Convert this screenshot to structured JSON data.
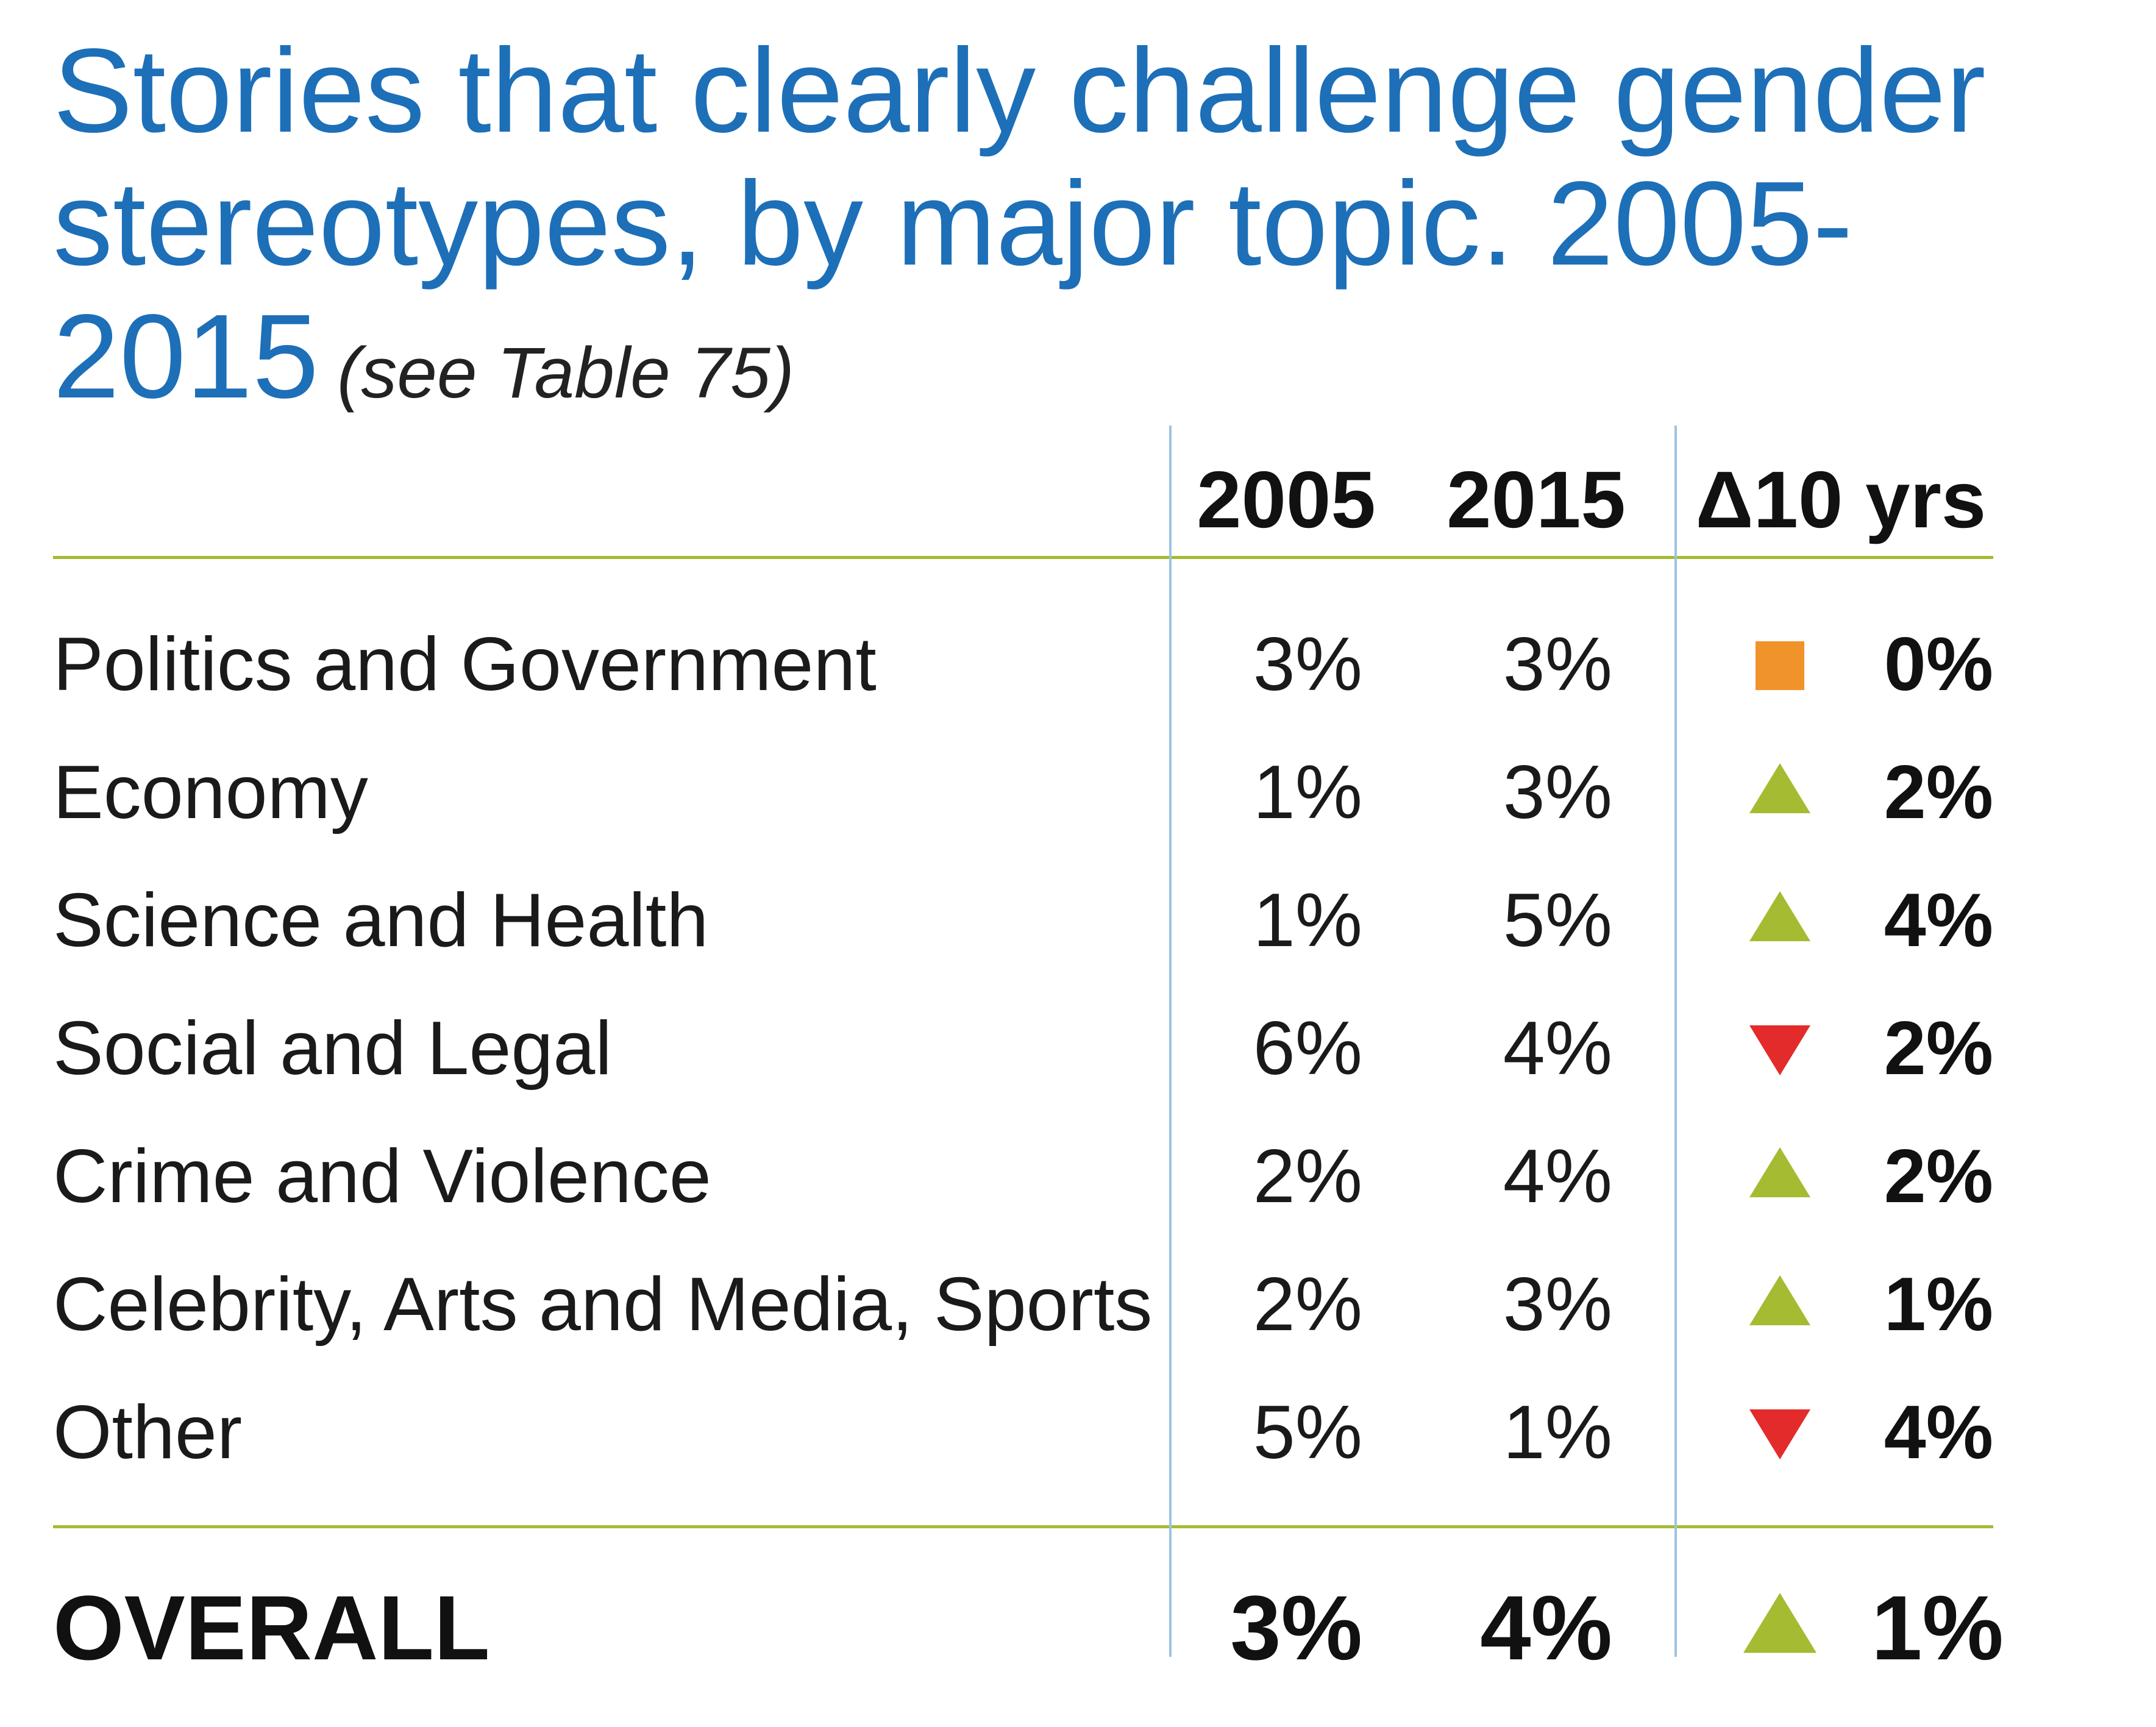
{
  "title": {
    "main": "Stories that clearly challenge gender stereotypes, by major topic. 2005-2015",
    "note": "(see Table 75)"
  },
  "colors": {
    "title": "#1d6fb8",
    "rule": "#a4bb32",
    "divider": "#9ec3e0",
    "increase": "#a4bb32",
    "decrease": "#e32b2b",
    "no_change": "#f0932a"
  },
  "chart_data": {
    "type": "table",
    "columns": [
      "2005",
      "2015",
      "Δ10 yrs"
    ],
    "rows": [
      {
        "topic": "Politics and Government",
        "y2005": "3%",
        "y2015": "3%",
        "delta": "0%",
        "direction": "none"
      },
      {
        "topic": "Economy",
        "y2005": "1%",
        "y2015": "3%",
        "delta": "2%",
        "direction": "up"
      },
      {
        "topic": "Science and Health",
        "y2005": "1%",
        "y2015": "5%",
        "delta": "4%",
        "direction": "up"
      },
      {
        "topic": "Social and Legal",
        "y2005": "6%",
        "y2015": "4%",
        "delta": "2%",
        "direction": "down"
      },
      {
        "topic": "Crime and Violence",
        "y2005": "2%",
        "y2015": "4%",
        "delta": "2%",
        "direction": "up"
      },
      {
        "topic": "Celebrity, Arts and Media, Sports",
        "y2005": "2%",
        "y2015": "3%",
        "delta": "1%",
        "direction": "up"
      },
      {
        "topic": "Other",
        "y2005": "5%",
        "y2015": "1%",
        "delta": "4%",
        "direction": "down"
      }
    ],
    "overall": {
      "topic": "OVERALL",
      "y2005": "3%",
      "y2015": "4%",
      "delta": "1%",
      "direction": "up"
    }
  }
}
